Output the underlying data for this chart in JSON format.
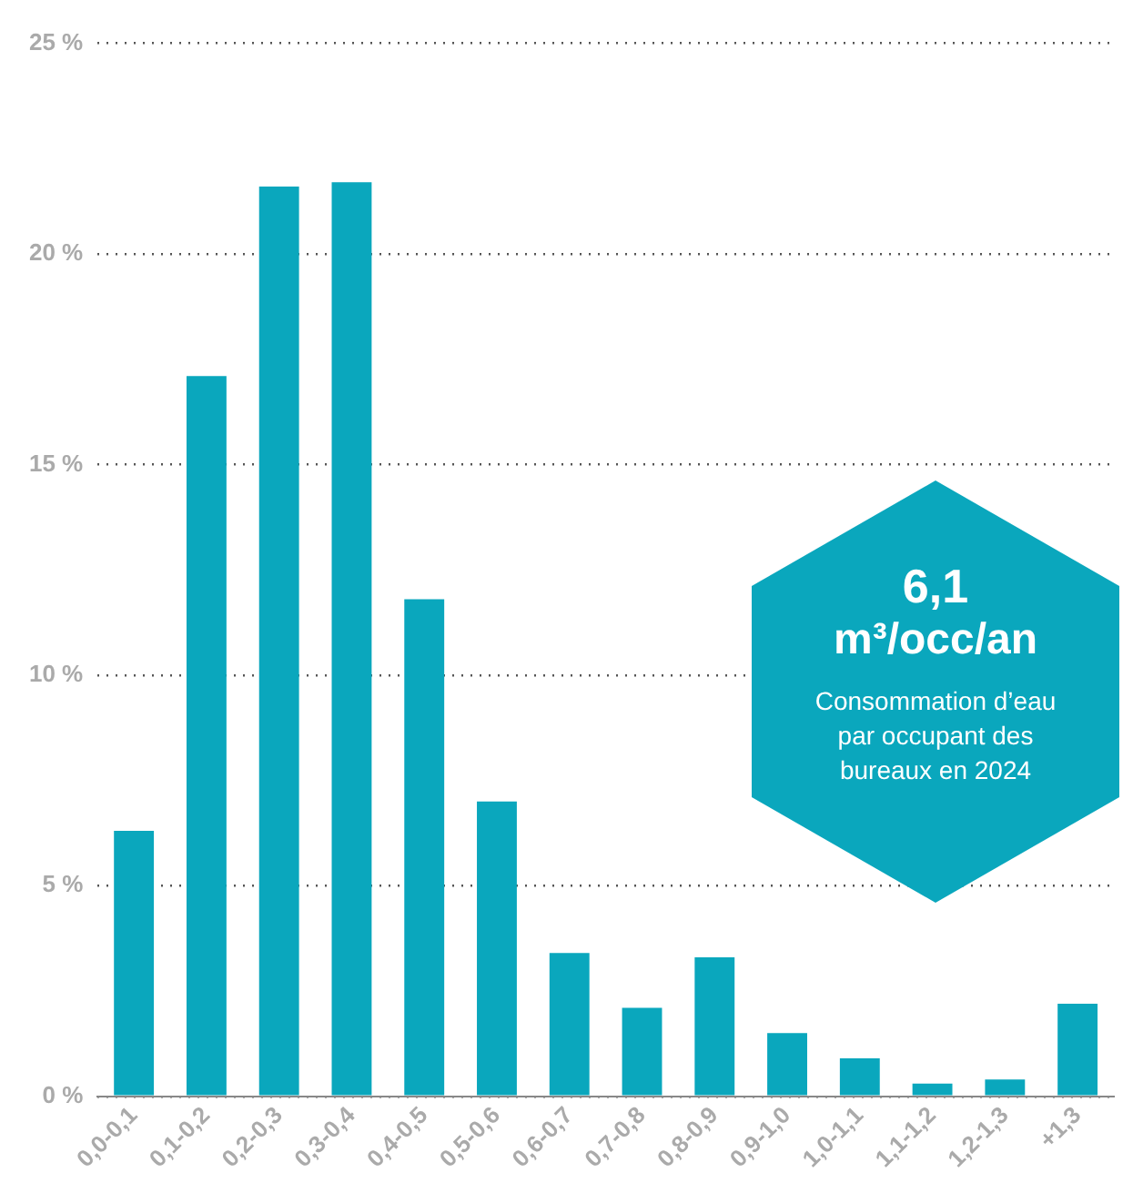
{
  "chart_data": {
    "type": "bar",
    "categories": [
      "0,0-0,1",
      "0,1-0,2",
      "0,2-0,3",
      "0,3-0,4",
      "0,4-0,5",
      "0,5-0,6",
      "0,6-0,7",
      "0,7-0,8",
      "0,8-0,9",
      "0,9-1,0",
      "1,0-1,1",
      "1,1-1,2",
      "1,2-1,3",
      "+1,3"
    ],
    "values": [
      6.3,
      17.1,
      21.6,
      21.7,
      11.8,
      7.0,
      3.4,
      2.1,
      3.3,
      1.5,
      0.9,
      0.3,
      0.4,
      2.2
    ],
    "color": "#0aa7bd",
    "ylim": [
      0,
      25
    ],
    "yticks": [
      {
        "value": 0,
        "label": "0 %"
      },
      {
        "value": 5,
        "label": "5 %"
      },
      {
        "value": 10,
        "label": "10 %"
      },
      {
        "value": 15,
        "label": "15 %"
      },
      {
        "value": 20,
        "label": "20 %"
      },
      {
        "value": 25,
        "label": "25 %"
      }
    ],
    "grid": "y",
    "annotations": [
      "6,1",
      "m³/occ/an",
      "Consommation d’eau par occupant des bureaux en 2024"
    ]
  }
}
